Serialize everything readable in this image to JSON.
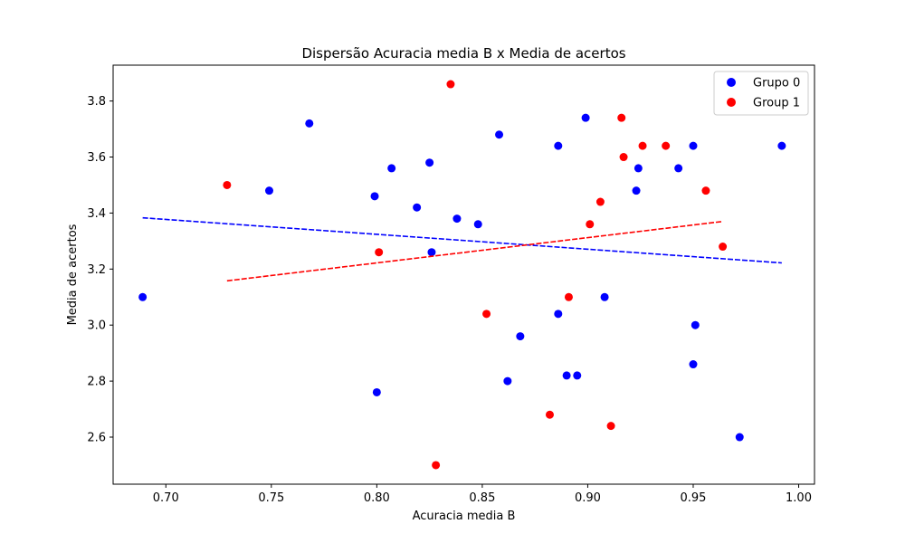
{
  "chart_data": {
    "type": "scatter",
    "title": "Dispersão Acuracia media B x Media de acertos",
    "xlabel": "Acuracia media B",
    "ylabel": "Media de acertos",
    "xlim": [
      0.675,
      1.0075
    ],
    "ylim": [
      2.432,
      3.928
    ],
    "x_ticks": [
      "0.70",
      "0.75",
      "0.80",
      "0.85",
      "0.90",
      "0.95",
      "1.00"
    ],
    "y_ticks": [
      "2.6",
      "2.8",
      "3.0",
      "3.2",
      "3.4",
      "3.6",
      "3.8"
    ],
    "grid": false,
    "legend_position": "top-right",
    "series": [
      {
        "name": "Grupo 0",
        "color": "#0000ff",
        "points": [
          [
            0.689,
            3.1
          ],
          [
            0.749,
            3.48
          ],
          [
            0.768,
            3.72
          ],
          [
            0.799,
            3.46
          ],
          [
            0.8,
            2.76
          ],
          [
            0.807,
            3.56
          ],
          [
            0.819,
            3.42
          ],
          [
            0.825,
            3.58
          ],
          [
            0.826,
            3.26
          ],
          [
            0.838,
            3.38
          ],
          [
            0.848,
            3.36
          ],
          [
            0.858,
            3.68
          ],
          [
            0.862,
            2.8
          ],
          [
            0.868,
            2.96
          ],
          [
            0.886,
            3.64
          ],
          [
            0.886,
            3.04
          ],
          [
            0.89,
            2.82
          ],
          [
            0.895,
            2.82
          ],
          [
            0.899,
            3.74
          ],
          [
            0.908,
            3.1
          ],
          [
            0.923,
            3.48
          ],
          [
            0.924,
            3.56
          ],
          [
            0.943,
            3.56
          ],
          [
            0.95,
            3.64
          ],
          [
            0.95,
            2.86
          ],
          [
            0.951,
            3.0
          ],
          [
            0.972,
            2.6
          ],
          [
            0.992,
            3.64
          ]
        ],
        "trend": {
          "x": [
            0.689,
            0.992
          ],
          "y": [
            3.383,
            3.222
          ]
        }
      },
      {
        "name": "Group 1",
        "color": "#ff0000",
        "points": [
          [
            0.729,
            3.5
          ],
          [
            0.801,
            3.26
          ],
          [
            0.828,
            2.5
          ],
          [
            0.835,
            3.86
          ],
          [
            0.852,
            3.04
          ],
          [
            0.882,
            2.68
          ],
          [
            0.891,
            3.1
          ],
          [
            0.901,
            3.36
          ],
          [
            0.906,
            3.44
          ],
          [
            0.911,
            2.64
          ],
          [
            0.916,
            3.74
          ],
          [
            0.917,
            3.6
          ],
          [
            0.926,
            3.64
          ],
          [
            0.937,
            3.64
          ],
          [
            0.956,
            3.48
          ],
          [
            0.964,
            3.28
          ]
        ],
        "trend": {
          "x": [
            0.729,
            0.964
          ],
          "y": [
            3.158,
            3.37
          ]
        }
      }
    ]
  }
}
